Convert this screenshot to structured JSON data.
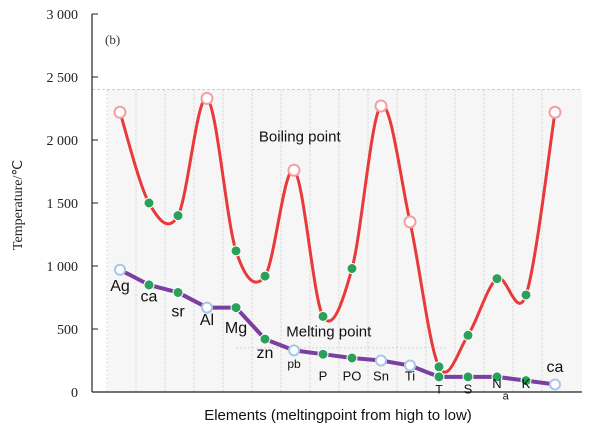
{
  "chart_data": {
    "type": "line",
    "panel_label": "(b)",
    "ylabel": "Temperature/℃",
    "xlabel": "Elements (meltingpoint from high to low)",
    "ylim": [
      0,
      3000
    ],
    "yticks": [
      {
        "value": 0,
        "label": "0"
      },
      {
        "value": 500,
        "label": "500"
      },
      {
        "value": 1000,
        "label": "1 000"
      },
      {
        "value": 1500,
        "label": "1 500"
      },
      {
        "value": 2000,
        "label": "2 000"
      },
      {
        "value": 2500,
        "label": "2 500"
      },
      {
        "value": 3000,
        "label": "3 000"
      }
    ],
    "grid": false,
    "series": [
      {
        "name": "Boiling point",
        "color": "#e83a3a",
        "values": [
          2220,
          1500,
          1400,
          2330,
          1120,
          920,
          1760,
          600,
          980,
          2270,
          1350,
          200,
          450,
          900,
          770,
          2220
        ]
      },
      {
        "name": "Melting point",
        "color": "#7b3fa0",
        "values": [
          970,
          850,
          790,
          670,
          670,
          420,
          330,
          300,
          270,
          250,
          210,
          120,
          120,
          120,
          90,
          60
        ]
      }
    ],
    "marker_styles": [
      "hollow",
      "green",
      "green",
      "hollow",
      "green",
      "green",
      "hollow",
      "green",
      "green",
      "hollow",
      "hollow",
      "green",
      "green",
      "green",
      "green",
      "hollow"
    ],
    "element_labels": [
      {
        "text": "Ag",
        "index": 0,
        "level": 800,
        "size": 16
      },
      {
        "text": "ca",
        "index": 1,
        "level": 720,
        "size": 16
      },
      {
        "text": "sr",
        "index": 2,
        "level": 600,
        "size": 16
      },
      {
        "text": "Al",
        "index": 3,
        "level": 530,
        "size": 16
      },
      {
        "text": "Mg",
        "index": 4,
        "level": 470,
        "size": 16
      },
      {
        "text": "zn",
        "index": 5,
        "level": 270,
        "size": 16
      },
      {
        "text": "pb",
        "index": 6,
        "level": 190,
        "size": 12
      },
      {
        "text": "P",
        "index": 7,
        "level": 90,
        "size": 13
      },
      {
        "text": "PO",
        "index": 8,
        "level": 90,
        "size": 13
      },
      {
        "text": "Sn",
        "index": 9,
        "level": 90,
        "size": 13
      },
      {
        "text": "Ti",
        "index": 10,
        "level": 90,
        "size": 13
      },
      {
        "text": "T",
        "index": 11,
        "level": -10,
        "size": 12
      },
      {
        "text": "S",
        "index": 12,
        "level": -10,
        "size": 13
      },
      {
        "text": "N",
        "index": 13,
        "level": 30,
        "size": 13
      },
      {
        "text": "a",
        "index": 13.3,
        "level": -60,
        "size": 11
      },
      {
        "text": "K",
        "index": 14,
        "level": 30,
        "size": 13
      },
      {
        "text": "ca",
        "index": 15,
        "level": 160,
        "size": 16
      }
    ],
    "annotations": [
      {
        "text": "Boiling point",
        "index": 6.2,
        "level": 1990
      },
      {
        "text": "Melting point",
        "index": 7.2,
        "level": 440
      }
    ]
  }
}
